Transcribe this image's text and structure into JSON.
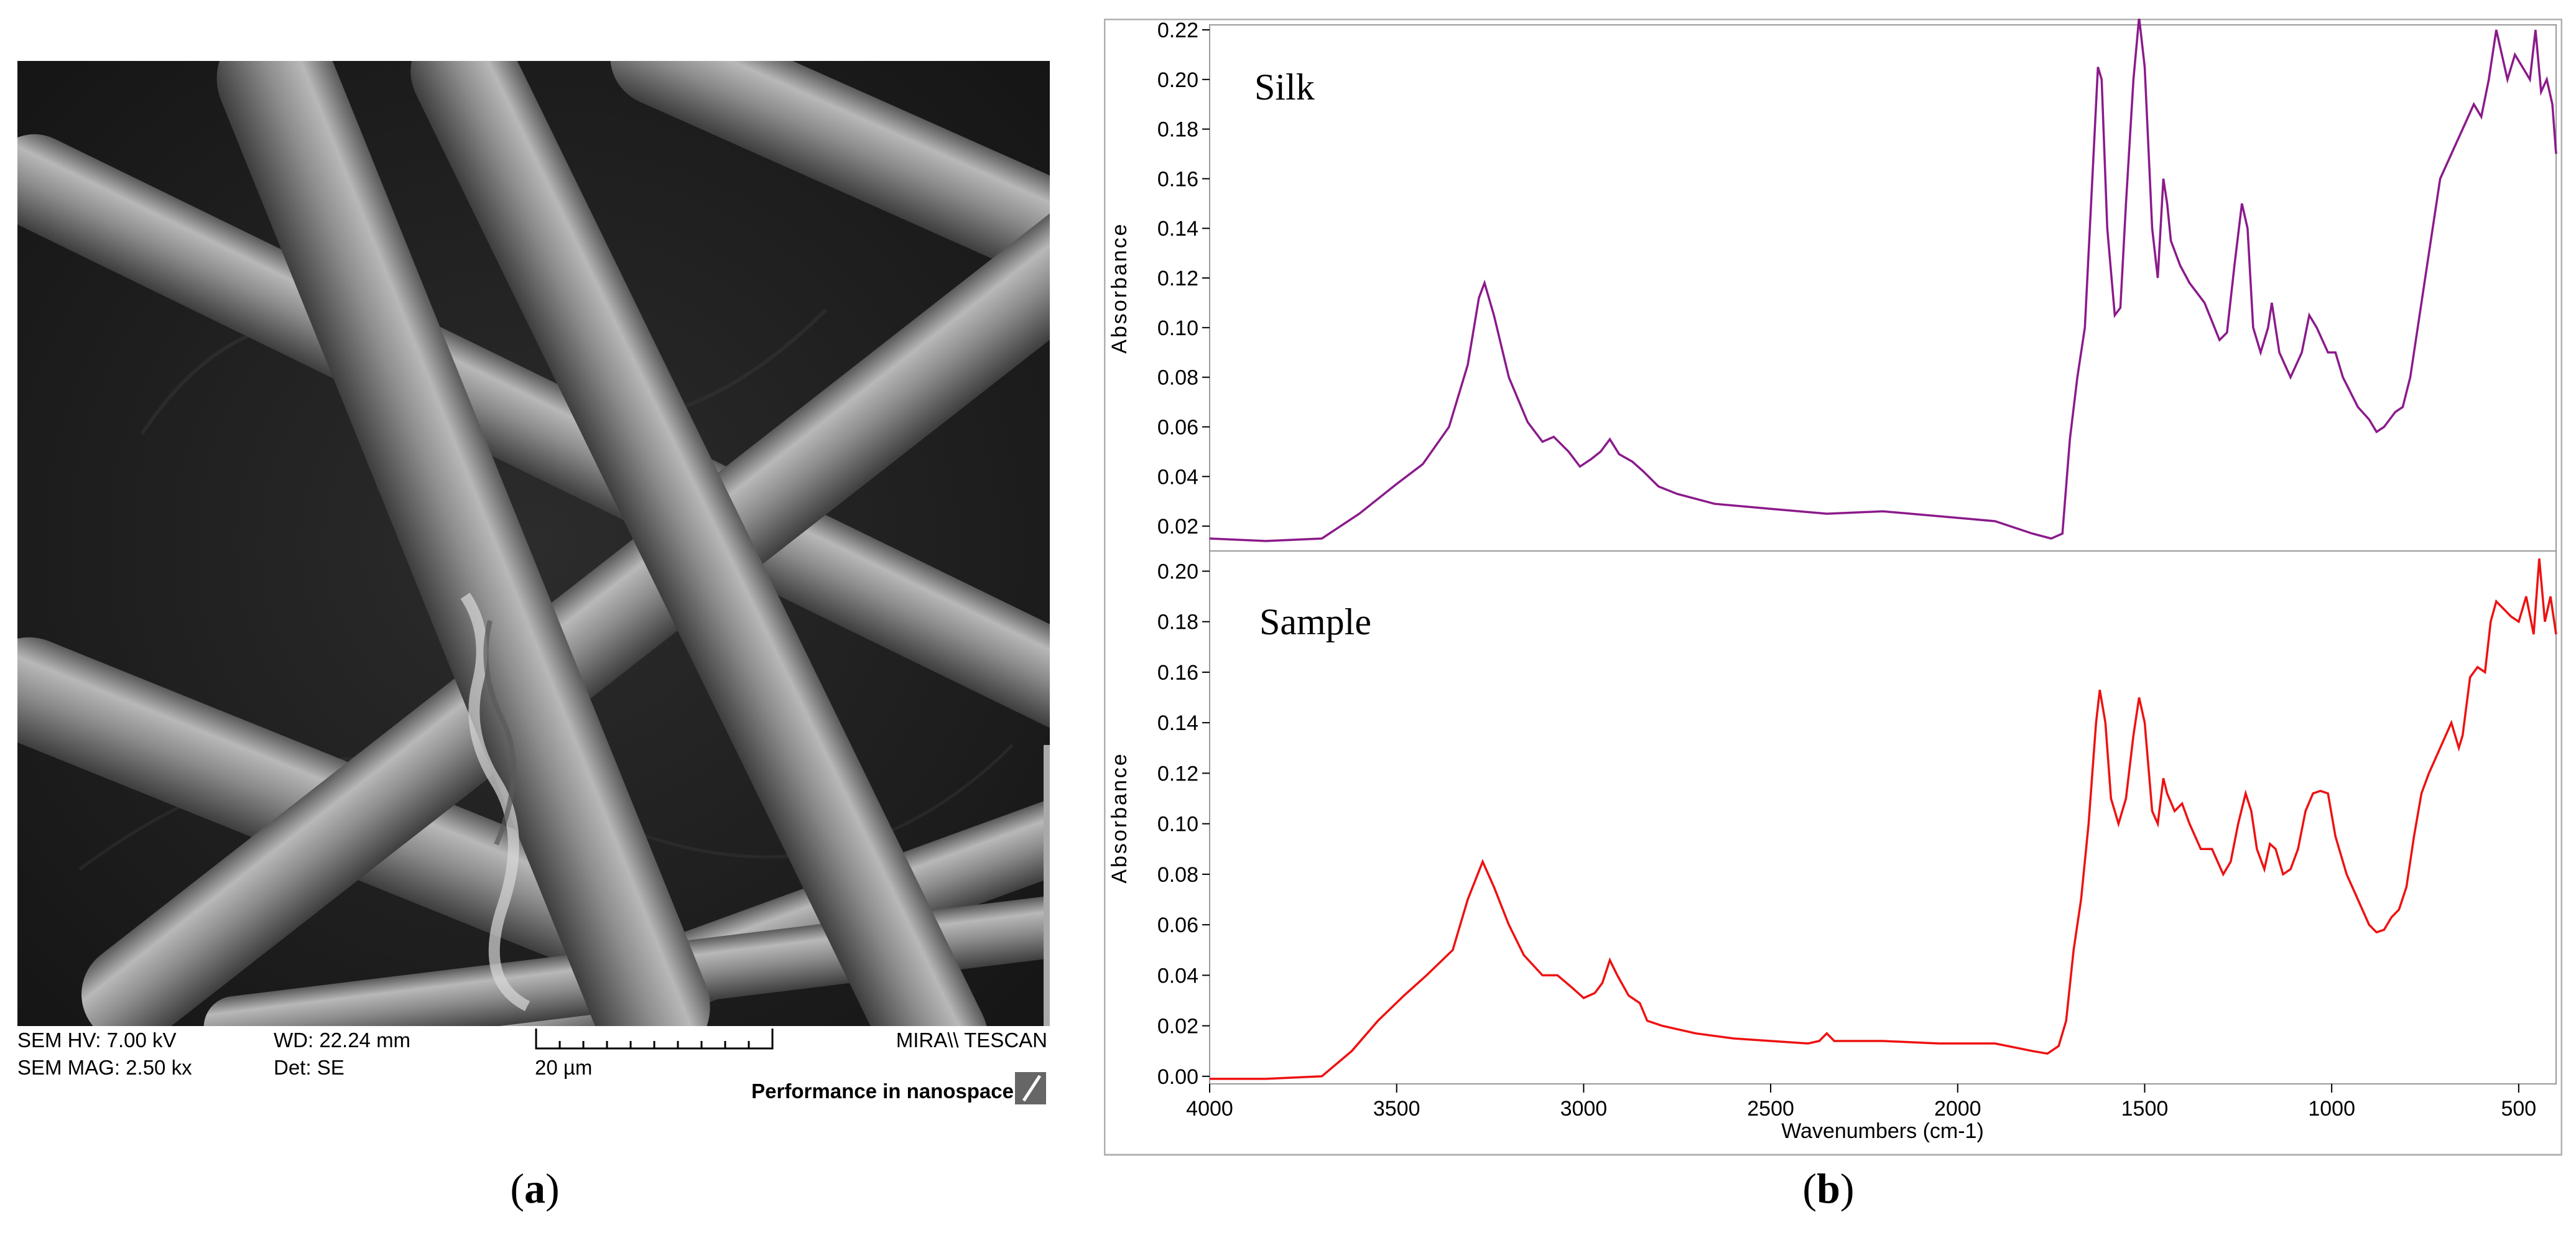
{
  "panel_a": {
    "label_open": "(",
    "label_letter": "a",
    "label_close": ")",
    "info": {
      "hv": "SEM HV: 7.00 kV",
      "mag": "SEM MAG: 2.50 kx",
      "wd": "WD: 22.24 mm",
      "det": "Det: SE",
      "scale": "20 µm",
      "brand": "MIRA\\\\ TESCAN",
      "tagline": "Performance in nanospace"
    }
  },
  "panel_b": {
    "label_open": "(",
    "label_letter": "b",
    "label_close": ")"
  },
  "chart_data": {
    "type": "line",
    "xlabel": "Wavenumbers (cm-1)",
    "xlim": [
      4000,
      400
    ],
    "xticks": [
      4000,
      3500,
      3000,
      2500,
      2000,
      1500,
      1000,
      500
    ],
    "subplots": [
      {
        "name": "Silk",
        "ylabel": "Absorbance",
        "ylim": [
          0.01,
          0.222
        ],
        "yticks": [
          0.02,
          0.04,
          0.06,
          0.08,
          0.1,
          0.12,
          0.14,
          0.16,
          0.18,
          0.2,
          0.22
        ],
        "ytick_labels": [
          "0.02",
          "0.04",
          "0.06",
          "0.08",
          "0.10",
          "0.12",
          "0.14",
          "0.16",
          "0.18",
          "0.20",
          "0.22"
        ],
        "color": "#8b1a8b",
        "points": [
          [
            4000,
            0.015
          ],
          [
            3850,
            0.014
          ],
          [
            3700,
            0.015
          ],
          [
            3600,
            0.025
          ],
          [
            3500,
            0.037
          ],
          [
            3430,
            0.045
          ],
          [
            3360,
            0.06
          ],
          [
            3310,
            0.085
          ],
          [
            3280,
            0.112
          ],
          [
            3265,
            0.118
          ],
          [
            3240,
            0.105
          ],
          [
            3200,
            0.08
          ],
          [
            3150,
            0.062
          ],
          [
            3110,
            0.054
          ],
          [
            3080,
            0.056
          ],
          [
            3040,
            0.05
          ],
          [
            3010,
            0.044
          ],
          [
            2980,
            0.047
          ],
          [
            2955,
            0.05
          ],
          [
            2930,
            0.055
          ],
          [
            2905,
            0.049
          ],
          [
            2870,
            0.046
          ],
          [
            2840,
            0.042
          ],
          [
            2800,
            0.036
          ],
          [
            2750,
            0.033
          ],
          [
            2650,
            0.029
          ],
          [
            2500,
            0.027
          ],
          [
            2350,
            0.025
          ],
          [
            2200,
            0.026
          ],
          [
            2050,
            0.024
          ],
          [
            1900,
            0.022
          ],
          [
            1800,
            0.017
          ],
          [
            1750,
            0.015
          ],
          [
            1720,
            0.017
          ],
          [
            1700,
            0.055
          ],
          [
            1680,
            0.08
          ],
          [
            1660,
            0.1
          ],
          [
            1640,
            0.16
          ],
          [
            1625,
            0.205
          ],
          [
            1615,
            0.2
          ],
          [
            1600,
            0.14
          ],
          [
            1580,
            0.105
          ],
          [
            1565,
            0.108
          ],
          [
            1550,
            0.15
          ],
          [
            1530,
            0.2
          ],
          [
            1515,
            0.225
          ],
          [
            1500,
            0.205
          ],
          [
            1480,
            0.14
          ],
          [
            1465,
            0.12
          ],
          [
            1450,
            0.16
          ],
          [
            1440,
            0.15
          ],
          [
            1430,
            0.135
          ],
          [
            1405,
            0.125
          ],
          [
            1380,
            0.118
          ],
          [
            1340,
            0.11
          ],
          [
            1300,
            0.095
          ],
          [
            1280,
            0.098
          ],
          [
            1260,
            0.125
          ],
          [
            1240,
            0.15
          ],
          [
            1225,
            0.14
          ],
          [
            1210,
            0.1
          ],
          [
            1190,
            0.09
          ],
          [
            1170,
            0.1
          ],
          [
            1160,
            0.11
          ],
          [
            1140,
            0.09
          ],
          [
            1110,
            0.08
          ],
          [
            1080,
            0.09
          ],
          [
            1060,
            0.105
          ],
          [
            1040,
            0.1
          ],
          [
            1010,
            0.09
          ],
          [
            990,
            0.09
          ],
          [
            970,
            0.08
          ],
          [
            930,
            0.068
          ],
          [
            900,
            0.063
          ],
          [
            880,
            0.058
          ],
          [
            860,
            0.06
          ],
          [
            830,
            0.066
          ],
          [
            810,
            0.068
          ],
          [
            790,
            0.08
          ],
          [
            770,
            0.1
          ],
          [
            740,
            0.13
          ],
          [
            710,
            0.16
          ],
          [
            680,
            0.17
          ],
          [
            650,
            0.18
          ],
          [
            620,
            0.19
          ],
          [
            600,
            0.185
          ],
          [
            580,
            0.2
          ],
          [
            560,
            0.22
          ],
          [
            545,
            0.21
          ],
          [
            530,
            0.2
          ],
          [
            510,
            0.21
          ],
          [
            490,
            0.205
          ],
          [
            470,
            0.2
          ],
          [
            455,
            0.22
          ],
          [
            440,
            0.195
          ],
          [
            425,
            0.2
          ],
          [
            410,
            0.19
          ],
          [
            400,
            0.17
          ]
        ]
      },
      {
        "name": "Sample",
        "ylabel": "Absorbance",
        "ylim": [
          -0.003,
          0.208
        ],
        "yticks": [
          0.0,
          0.02,
          0.04,
          0.06,
          0.08,
          0.1,
          0.12,
          0.14,
          0.16,
          0.18,
          0.2
        ],
        "ytick_labels": [
          "0.00",
          "0.02",
          "0.04",
          "0.06",
          "0.08",
          "0.10",
          "0.12",
          "0.14",
          "0.16",
          "0.18",
          "0.20"
        ],
        "color": "#ee1111",
        "points": [
          [
            4000,
            -0.001
          ],
          [
            3850,
            -0.001
          ],
          [
            3700,
            0.0
          ],
          [
            3620,
            0.01
          ],
          [
            3550,
            0.022
          ],
          [
            3480,
            0.032
          ],
          [
            3420,
            0.04
          ],
          [
            3350,
            0.05
          ],
          [
            3310,
            0.07
          ],
          [
            3270,
            0.085
          ],
          [
            3240,
            0.075
          ],
          [
            3200,
            0.06
          ],
          [
            3160,
            0.048
          ],
          [
            3110,
            0.04
          ],
          [
            3070,
            0.04
          ],
          [
            3030,
            0.035
          ],
          [
            3000,
            0.031
          ],
          [
            2970,
            0.033
          ],
          [
            2950,
            0.037
          ],
          [
            2930,
            0.046
          ],
          [
            2910,
            0.04
          ],
          [
            2880,
            0.032
          ],
          [
            2860,
            0.03
          ],
          [
            2850,
            0.029
          ],
          [
            2830,
            0.022
          ],
          [
            2790,
            0.02
          ],
          [
            2700,
            0.017
          ],
          [
            2600,
            0.015
          ],
          [
            2500,
            0.014
          ],
          [
            2400,
            0.013
          ],
          [
            2370,
            0.014
          ],
          [
            2350,
            0.017
          ],
          [
            2330,
            0.014
          ],
          [
            2200,
            0.014
          ],
          [
            2050,
            0.013
          ],
          [
            1900,
            0.013
          ],
          [
            1800,
            0.01
          ],
          [
            1760,
            0.009
          ],
          [
            1730,
            0.012
          ],
          [
            1710,
            0.022
          ],
          [
            1690,
            0.05
          ],
          [
            1670,
            0.07
          ],
          [
            1650,
            0.1
          ],
          [
            1630,
            0.14
          ],
          [
            1620,
            0.153
          ],
          [
            1605,
            0.14
          ],
          [
            1590,
            0.11
          ],
          [
            1570,
            0.1
          ],
          [
            1550,
            0.11
          ],
          [
            1530,
            0.135
          ],
          [
            1515,
            0.15
          ],
          [
            1500,
            0.14
          ],
          [
            1480,
            0.105
          ],
          [
            1465,
            0.1
          ],
          [
            1450,
            0.118
          ],
          [
            1440,
            0.112
          ],
          [
            1420,
            0.105
          ],
          [
            1400,
            0.108
          ],
          [
            1380,
            0.1
          ],
          [
            1350,
            0.09
          ],
          [
            1320,
            0.09
          ],
          [
            1290,
            0.08
          ],
          [
            1270,
            0.085
          ],
          [
            1250,
            0.1
          ],
          [
            1230,
            0.112
          ],
          [
            1215,
            0.105
          ],
          [
            1200,
            0.09
          ],
          [
            1180,
            0.082
          ],
          [
            1165,
            0.092
          ],
          [
            1150,
            0.09
          ],
          [
            1130,
            0.08
          ],
          [
            1110,
            0.082
          ],
          [
            1090,
            0.09
          ],
          [
            1070,
            0.105
          ],
          [
            1050,
            0.112
          ],
          [
            1030,
            0.113
          ],
          [
            1010,
            0.112
          ],
          [
            990,
            0.095
          ],
          [
            960,
            0.08
          ],
          [
            930,
            0.07
          ],
          [
            900,
            0.06
          ],
          [
            880,
            0.057
          ],
          [
            860,
            0.058
          ],
          [
            840,
            0.063
          ],
          [
            820,
            0.066
          ],
          [
            800,
            0.075
          ],
          [
            780,
            0.095
          ],
          [
            760,
            0.112
          ],
          [
            740,
            0.12
          ],
          [
            710,
            0.13
          ],
          [
            680,
            0.14
          ],
          [
            660,
            0.13
          ],
          [
            650,
            0.135
          ],
          [
            630,
            0.158
          ],
          [
            610,
            0.162
          ],
          [
            590,
            0.16
          ],
          [
            575,
            0.18
          ],
          [
            560,
            0.188
          ],
          [
            540,
            0.185
          ],
          [
            520,
            0.182
          ],
          [
            500,
            0.18
          ],
          [
            480,
            0.19
          ],
          [
            460,
            0.175
          ],
          [
            445,
            0.205
          ],
          [
            430,
            0.18
          ],
          [
            415,
            0.19
          ],
          [
            400,
            0.175
          ]
        ]
      }
    ]
  }
}
